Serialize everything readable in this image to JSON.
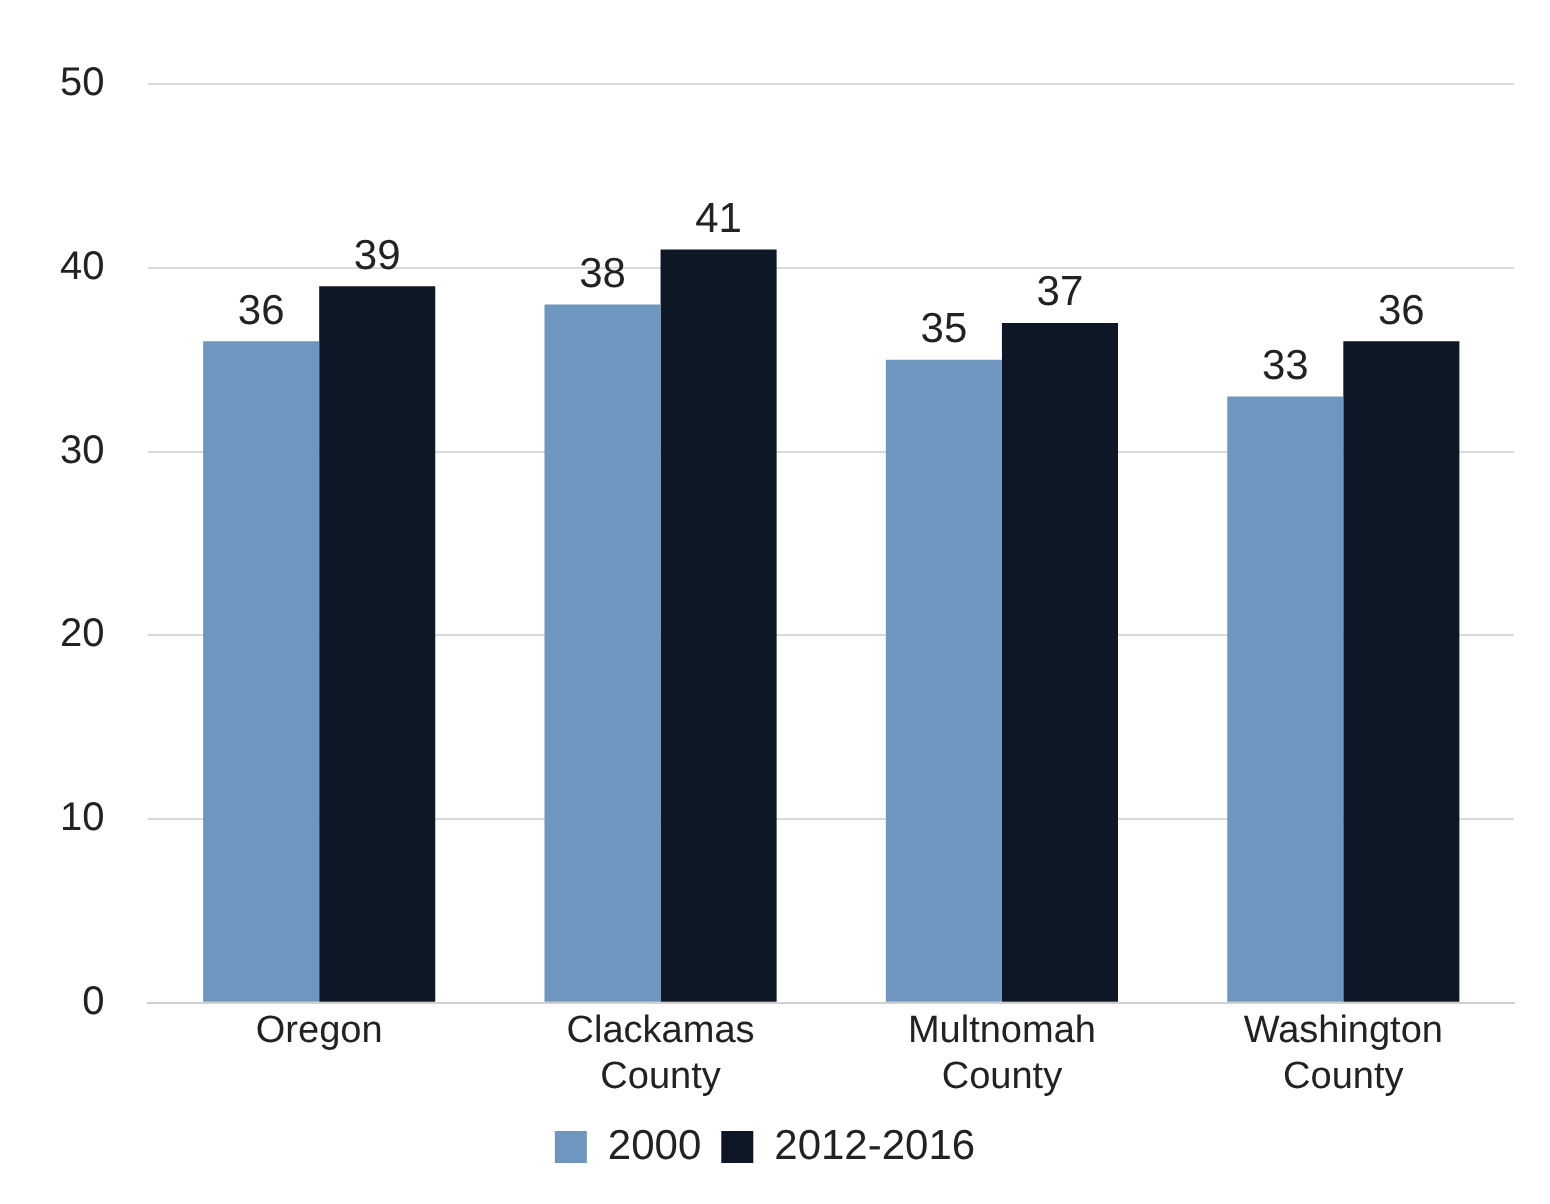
{
  "chart_data": {
    "type": "bar",
    "categories": [
      "Oregon",
      "Clackamas County",
      "Multnomah County",
      "Washington County"
    ],
    "series": [
      {
        "name": "2000",
        "color": "#6f96bf",
        "values": [
          36,
          38,
          35,
          33
        ]
      },
      {
        "name": "2012-2016",
        "color": "#0e1726",
        "values": [
          39,
          41,
          37,
          36
        ]
      }
    ],
    "ylim": [
      0,
      50
    ],
    "yticks": [
      0,
      10,
      20,
      30,
      40,
      50
    ],
    "grid": "y",
    "legend": "bottom",
    "data_labels": true
  }
}
